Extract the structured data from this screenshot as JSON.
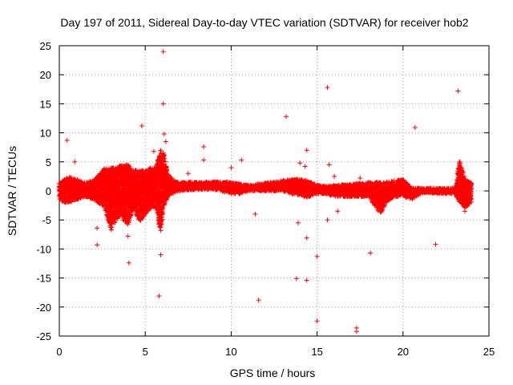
{
  "chart_data": {
    "type": "scatter",
    "title": "Day 197 of 2011, Sidereal Day-to-day VTEC variation (SDTVAR) for receiver hob2",
    "xlabel": "GPS time / hours",
    "ylabel": "SDTVAR / TECUs",
    "xlim": [
      0,
      25
    ],
    "ylim": [
      -25,
      25
    ],
    "xticks": [
      0,
      5,
      10,
      15,
      20,
      25
    ],
    "yticks": [
      -25,
      -20,
      -15,
      -10,
      -5,
      0,
      5,
      10,
      15,
      20,
      25
    ],
    "grid": true,
    "marker": "+",
    "color": "#ff0000",
    "series": [
      {
        "name": "SDTVAR",
        "points": [
          [
            0.45,
            8.7
          ],
          [
            0.9,
            5.0
          ],
          [
            0.95,
            -1.5
          ],
          [
            2.2,
            -6.4
          ],
          [
            2.2,
            -9.3
          ],
          [
            2.6,
            3.8
          ],
          [
            3.4,
            -4.0
          ],
          [
            3.7,
            -5.0
          ],
          [
            4.0,
            -7.8
          ],
          [
            4.05,
            -12.4
          ],
          [
            4.2,
            3.0
          ],
          [
            4.8,
            11.2
          ],
          [
            5.5,
            6.8
          ],
          [
            5.8,
            -18.1
          ],
          [
            5.9,
            -11.0
          ],
          [
            6.05,
            24.0
          ],
          [
            6.05,
            15.0
          ],
          [
            6.1,
            9.8
          ],
          [
            6.2,
            8.5
          ],
          [
            7.5,
            3.0
          ],
          [
            8.4,
            7.6
          ],
          [
            8.4,
            5.3
          ],
          [
            10.0,
            4.0
          ],
          [
            10.6,
            5.3
          ],
          [
            11.4,
            -4.0
          ],
          [
            11.6,
            -18.8
          ],
          [
            13.2,
            12.8
          ],
          [
            13.8,
            -15.1
          ],
          [
            13.9,
            -5.5
          ],
          [
            14.0,
            4.8
          ],
          [
            14.3,
            4.2
          ],
          [
            14.4,
            -15.4
          ],
          [
            14.4,
            -8.1
          ],
          [
            14.4,
            7.0
          ],
          [
            15.0,
            -11.3
          ],
          [
            15.0,
            -22.4
          ],
          [
            15.6,
            17.8
          ],
          [
            15.6,
            -5.0
          ],
          [
            15.7,
            4.5
          ],
          [
            16.0,
            2.5
          ],
          [
            16.2,
            -3.5
          ],
          [
            17.3,
            -23.6
          ],
          [
            17.3,
            -24.2
          ],
          [
            17.5,
            2.2
          ],
          [
            18.1,
            -10.7
          ],
          [
            20.7,
            10.9
          ],
          [
            21.9,
            -9.2
          ],
          [
            23.2,
            17.2
          ],
          [
            23.6,
            -3.5
          ],
          [
            23.9,
            -1.5
          ]
        ],
        "dense_band": [
          [
            0.0,
            -1.5,
            1.5
          ],
          [
            0.3,
            -2.0,
            2.0
          ],
          [
            0.6,
            -2.0,
            2.5
          ],
          [
            1.0,
            -1.5,
            2.0
          ],
          [
            1.5,
            -1.0,
            1.5
          ],
          [
            2.0,
            -1.5,
            1.8
          ],
          [
            2.5,
            -2.5,
            3.5
          ],
          [
            2.7,
            -3.5,
            4.0
          ],
          [
            3.0,
            -7.0,
            4.0
          ],
          [
            3.3,
            -5.0,
            4.0
          ],
          [
            3.6,
            -4.0,
            4.5
          ],
          [
            4.0,
            -6.0,
            4.5
          ],
          [
            4.3,
            -3.0,
            3.5
          ],
          [
            4.7,
            -5.5,
            3.5
          ],
          [
            5.0,
            -4.0,
            3.5
          ],
          [
            5.3,
            -3.0,
            4.0
          ],
          [
            5.6,
            -3.0,
            4.0
          ],
          [
            5.9,
            -7.0,
            7.0
          ],
          [
            6.1,
            -2.5,
            6.5
          ],
          [
            6.3,
            -1.0,
            3.0
          ],
          [
            6.6,
            -0.5,
            2.0
          ],
          [
            7.0,
            0.0,
            1.5
          ],
          [
            8.0,
            0.2,
            1.5
          ],
          [
            9.0,
            0.3,
            1.6
          ],
          [
            10.0,
            -0.5,
            1.5
          ],
          [
            10.5,
            -0.5,
            1.2
          ],
          [
            11.0,
            0.0,
            1.0
          ],
          [
            12.0,
            0.0,
            1.4
          ],
          [
            13.0,
            0.0,
            1.8
          ],
          [
            13.5,
            -0.5,
            2.0
          ],
          [
            14.0,
            -0.8,
            2.0
          ],
          [
            14.4,
            -1.2,
            1.8
          ],
          [
            15.0,
            -0.5,
            1.0
          ],
          [
            15.5,
            -0.5,
            0.8
          ],
          [
            16.0,
            -1.0,
            1.0
          ],
          [
            17.0,
            -1.0,
            1.2
          ],
          [
            18.0,
            -1.0,
            1.5
          ],
          [
            18.7,
            -4.0,
            1.5
          ],
          [
            19.0,
            -2.0,
            1.5
          ],
          [
            19.5,
            -1.0,
            1.8
          ],
          [
            20.0,
            -1.0,
            2.0
          ],
          [
            20.5,
            -1.5,
            0.5
          ],
          [
            21.0,
            -0.5,
            0.5
          ],
          [
            21.5,
            -0.3,
            0.5
          ],
          [
            22.0,
            -0.5,
            0.5
          ],
          [
            23.0,
            -0.5,
            0.5
          ],
          [
            23.3,
            -2.0,
            5.5
          ],
          [
            23.6,
            -3.0,
            2.0
          ],
          [
            24.0,
            -2.0,
            1.5
          ]
        ]
      }
    ]
  }
}
